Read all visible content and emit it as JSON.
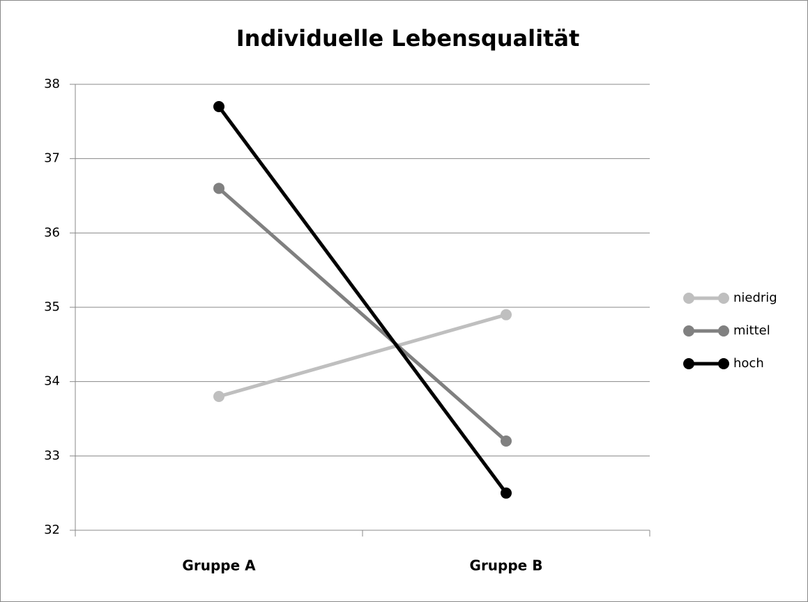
{
  "chart_data": {
    "type": "line",
    "title": "Individuelle Lebensqualität",
    "categories": [
      "Gruppe A",
      "Gruppe B"
    ],
    "series": [
      {
        "name": "niedrig",
        "color": "#bfbfbf",
        "values": [
          33.8,
          34.9
        ]
      },
      {
        "name": "mittel",
        "color": "#808080",
        "values": [
          36.6,
          33.2
        ]
      },
      {
        "name": "hoch",
        "color": "#000000",
        "values": [
          37.7,
          32.5
        ]
      }
    ],
    "ylim": [
      32,
      38
    ],
    "yticks": [
      32,
      33,
      34,
      35,
      36,
      37,
      38
    ],
    "grid": true,
    "legend": "right"
  }
}
